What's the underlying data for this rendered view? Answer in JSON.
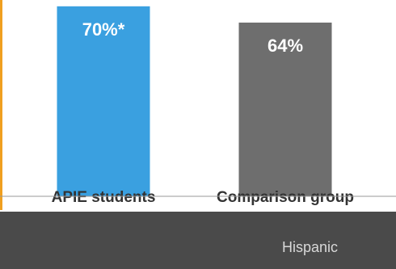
{
  "chart_data": {
    "type": "bar",
    "categories": [
      "APIE students",
      "Comparison group"
    ],
    "values": [
      70,
      64
    ],
    "data_labels": [
      "70%*",
      "64%"
    ],
    "colors": [
      "#3aa0e0",
      "#6e6e6e"
    ],
    "ylim": [
      0,
      100
    ],
    "grid": false,
    "legend": "none"
  },
  "footer": {
    "label": "Hispanic"
  }
}
